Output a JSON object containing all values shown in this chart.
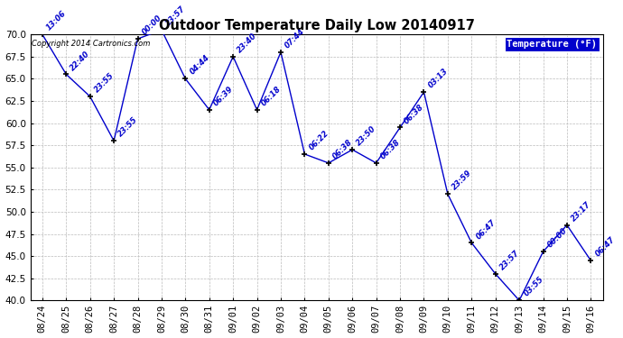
{
  "title": "Outdoor Temperature Daily Low 20140917",
  "copyright_text": "Copyright 2014 Cartronics.com",
  "legend_label": "Temperature (°F)",
  "x_labels": [
    "08/24",
    "08/25",
    "08/26",
    "08/27",
    "08/28",
    "08/29",
    "08/30",
    "08/31",
    "09/01",
    "09/02",
    "09/03",
    "09/04",
    "09/05",
    "09/06",
    "09/07",
    "09/08",
    "09/09",
    "09/10",
    "09/11",
    "09/12",
    "09/13",
    "09/14",
    "09/15",
    "09/16"
  ],
  "y_values": [
    70.0,
    65.5,
    63.0,
    58.0,
    69.5,
    70.5,
    65.0,
    61.5,
    67.5,
    61.5,
    68.0,
    56.5,
    55.5,
    57.0,
    55.5,
    59.5,
    63.5,
    52.0,
    46.5,
    43.0,
    40.0,
    45.5,
    48.5,
    44.5
  ],
  "time_labels": [
    "13:06",
    "22:40",
    "23:55",
    "23:55",
    "00:00",
    "23:57",
    "04:44",
    "06:39",
    "23:40",
    "06:18",
    "07:44",
    "06:22",
    "06:38",
    "23:50",
    "06:38",
    "06:38",
    "03:13",
    "23:59",
    "06:47",
    "23:57",
    "03:55",
    "00:00",
    "23:17",
    "06:47"
  ],
  "line_color": "#0000cc",
  "marker_color": "#000000",
  "bg_color": "#ffffff",
  "grid_color": "#aaaaaa",
  "annotation_color": "#0000cc",
  "title_color": "#000000",
  "legend_bg": "#0000cc",
  "legend_fg": "#ffffff",
  "ylim_min": 40.0,
  "ylim_max": 70.0,
  "yticks": [
    40.0,
    42.5,
    45.0,
    47.5,
    50.0,
    52.5,
    55.0,
    57.5,
    60.0,
    62.5,
    65.0,
    67.5,
    70.0
  ],
  "figwidth": 6.9,
  "figheight": 3.75,
  "dpi": 100
}
